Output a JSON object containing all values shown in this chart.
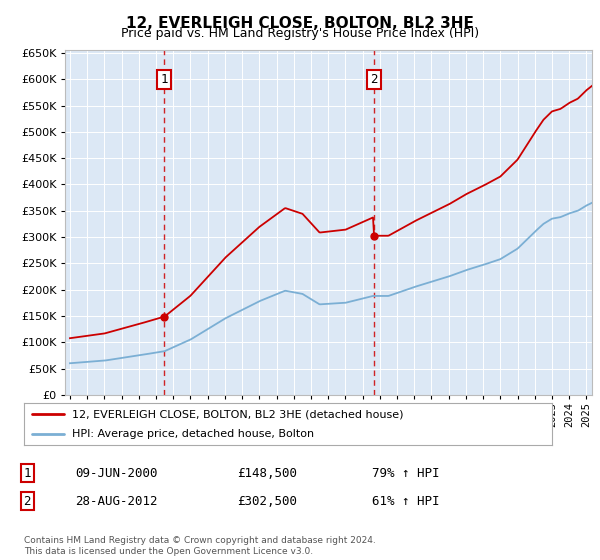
{
  "title": "12, EVERLEIGH CLOSE, BOLTON, BL2 3HE",
  "subtitle": "Price paid vs. HM Land Registry's House Price Index (HPI)",
  "legend_line1": "12, EVERLEIGH CLOSE, BOLTON, BL2 3HE (detached house)",
  "legend_line2": "HPI: Average price, detached house, Bolton",
  "annotation1_label": "1",
  "annotation1_date": "09-JUN-2000",
  "annotation1_price": "£148,500",
  "annotation1_hpi": "79% ↑ HPI",
  "annotation2_label": "2",
  "annotation2_date": "28-AUG-2012",
  "annotation2_price": "£302,500",
  "annotation2_hpi": "61% ↑ HPI",
  "footer": "Contains HM Land Registry data © Crown copyright and database right 2024.\nThis data is licensed under the Open Government Licence v3.0.",
  "hpi_color": "#7bafd4",
  "price_color": "#cc0000",
  "annotation_color": "#cc0000",
  "background_plot": "#dce8f5",
  "ylim_min": 0,
  "ylim_max": 650000,
  "x_start_year": 1995,
  "x_end_year": 2025,
  "t1": 2000.458,
  "t2": 2012.646,
  "price1": 148500,
  "price2": 302500
}
